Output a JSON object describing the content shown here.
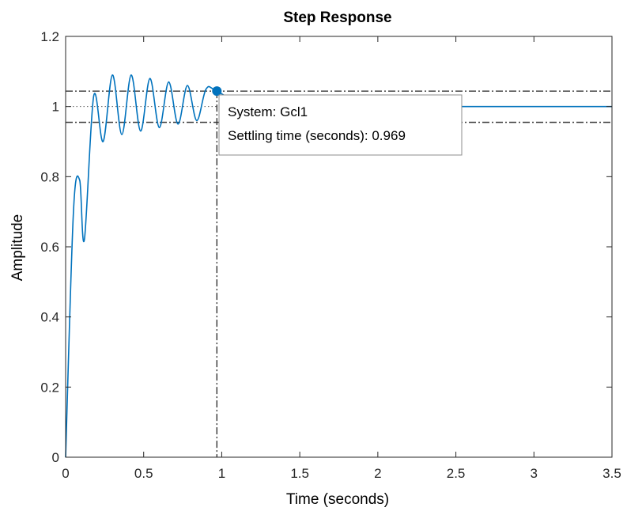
{
  "chart_data": {
    "type": "line",
    "title": "Step Response",
    "xlabel": "Time (seconds)",
    "ylabel": "Amplitude",
    "xlim": [
      0,
      3.5
    ],
    "ylim": [
      0,
      1.2
    ],
    "xticks": [
      0,
      0.5,
      1,
      1.5,
      2,
      2.5,
      3,
      3.5
    ],
    "xtick_labels": [
      "0",
      "0.5",
      "1",
      "1.5",
      "2",
      "2.5",
      "3",
      "3.5"
    ],
    "yticks": [
      0,
      0.2,
      0.4,
      0.6,
      0.8,
      1,
      1.2
    ],
    "ytick_labels": [
      "0",
      "0.2",
      "0.4",
      "0.6",
      "0.8",
      "1",
      "1.2"
    ],
    "grid": false,
    "series": [
      {
        "color": "#0072bd",
        "x": [
          0,
          0.05,
          0.09,
          0.12,
          0.18,
          0.24,
          0.3,
          0.36,
          0.42,
          0.48,
          0.54,
          0.6,
          0.66,
          0.72,
          0.78,
          0.84,
          0.9,
          0.969,
          1.2,
          1.5,
          2.0,
          2.5,
          3.0,
          3.5
        ],
        "y": [
          0,
          0.7,
          0.79,
          0.62,
          1.03,
          0.9,
          1.09,
          0.92,
          1.09,
          0.93,
          1.08,
          0.94,
          1.07,
          0.95,
          1.06,
          0.96,
          1.05,
          1.044,
          0.99,
          1.0,
          1.0,
          1.0,
          1.0,
          1.0
        ]
      }
    ],
    "steady_state": 1,
    "settling_band": [
      0.955,
      1.044
    ],
    "settling_marker": {
      "x": 0.969,
      "y": 1.044
    },
    "datatip": {
      "line1": "System: Gcl1",
      "line2": "Settling time (seconds): 0.969"
    }
  }
}
